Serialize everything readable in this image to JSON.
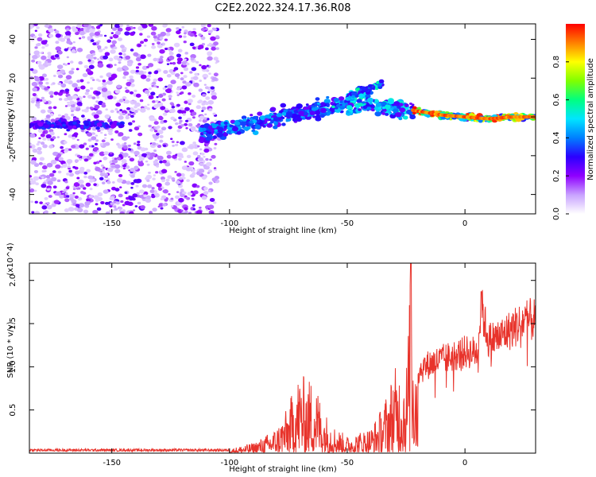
{
  "chart_data": [
    {
      "type": "heatmap",
      "title": "C2E2.2022.324.17.36.R08",
      "xlabel": "Height of straight line (km)",
      "ylabel": "Frequency (Hz)",
      "xlim": [
        -185,
        30
      ],
      "ylim": [
        -50,
        48
      ],
      "xticks": [
        -150,
        -100,
        -50,
        0
      ],
      "yticks": [
        -40,
        -20,
        0,
        20,
        40
      ],
      "grid": false,
      "colorbar": {
        "label": "Normalized spectral amplitude",
        "range": [
          0,
          1
        ],
        "ticks": [
          "0.0",
          "0.2",
          "0.4",
          "0.6",
          "0.8"
        ],
        "colors": [
          "#ffffff",
          "#c8a2ff",
          "#8f00ff",
          "#2b00ff",
          "#0080ff",
          "#00e5ff",
          "#00ff80",
          "#80ff00",
          "#ffff00",
          "#ff8000",
          "#ff0000"
        ]
      },
      "ridge": [
        {
          "x": -110,
          "y": -8
        },
        {
          "x": -100,
          "y": -6
        },
        {
          "x": -90,
          "y": -4
        },
        {
          "x": -80,
          "y": 0
        },
        {
          "x": -70,
          "y": 2
        },
        {
          "x": -60,
          "y": 5
        },
        {
          "x": -50,
          "y": 6
        },
        {
          "x": -40,
          "y": 6
        },
        {
          "x": -30,
          "y": 5
        },
        {
          "x": -20,
          "y": 3
        },
        {
          "x": -10,
          "y": 1
        },
        {
          "x": 0,
          "y": 0
        },
        {
          "x": 10,
          "y": -1
        },
        {
          "x": 20,
          "y": 0
        },
        {
          "x": 30,
          "y": 0
        }
      ],
      "features": [
        {
          "name": "noise_band",
          "x_range": [
            -185,
            -105
          ],
          "note": "scattered purple low-amplitude noise"
        },
        {
          "name": "low_freq_line",
          "x_range": [
            -185,
            -150
          ],
          "y": -4
        },
        {
          "name": "strong_band",
          "x_range": [
            -25,
            30
          ],
          "y": 0,
          "peak_amplitude": 0.95
        },
        {
          "name": "upper_branch",
          "x_range": [
            -50,
            -35
          ],
          "y": 15
        }
      ]
    },
    {
      "type": "line",
      "title": "",
      "xlabel": "Height of straight line (km)",
      "ylabel": "SNR (10 * v/v)",
      "y_multiplier": "(x10^4)",
      "xlim": [
        -185,
        30
      ],
      "ylim": [
        0,
        2.2
      ],
      "xticks": [
        -150,
        -100,
        -50,
        0
      ],
      "yticks": [
        0.5,
        1.0,
        1.5,
        2.0
      ],
      "grid": false,
      "series": [
        {
          "color": "#e8332b",
          "envelope": [
            {
              "x": -185,
              "y": 0.03
            },
            {
              "x": -150,
              "y": 0.03
            },
            {
              "x": -110,
              "y": 0.03
            },
            {
              "x": -100,
              "y": 0.05
            },
            {
              "x": -90,
              "y": 0.12
            },
            {
              "x": -85,
              "y": 0.2
            },
            {
              "x": -80,
              "y": 0.3
            },
            {
              "x": -75,
              "y": 0.55
            },
            {
              "x": -72,
              "y": 0.85
            },
            {
              "x": -70,
              "y": 0.95
            },
            {
              "x": -67,
              "y": 0.85
            },
            {
              "x": -64,
              "y": 0.9
            },
            {
              "x": -60,
              "y": 0.5
            },
            {
              "x": -55,
              "y": 0.3
            },
            {
              "x": -50,
              "y": 0.2
            },
            {
              "x": -45,
              "y": 0.25
            },
            {
              "x": -40,
              "y": 0.3
            },
            {
              "x": -35,
              "y": 0.55
            },
            {
              "x": -30,
              "y": 1.0
            },
            {
              "x": -25,
              "y": 1.0
            },
            {
              "x": -23,
              "y": 2.2
            },
            {
              "x": -20,
              "y": 1.05
            },
            {
              "x": -15,
              "y": 1.15
            },
            {
              "x": -10,
              "y": 1.2
            },
            {
              "x": -5,
              "y": 1.25
            },
            {
              "x": 0,
              "y": 1.3
            },
            {
              "x": 5,
              "y": 1.3
            },
            {
              "x": 7,
              "y": 1.87
            },
            {
              "x": 10,
              "y": 1.45
            },
            {
              "x": 15,
              "y": 1.5
            },
            {
              "x": 20,
              "y": 1.6
            },
            {
              "x": 25,
              "y": 1.7
            },
            {
              "x": 30,
              "y": 1.72
            }
          ]
        }
      ]
    }
  ]
}
